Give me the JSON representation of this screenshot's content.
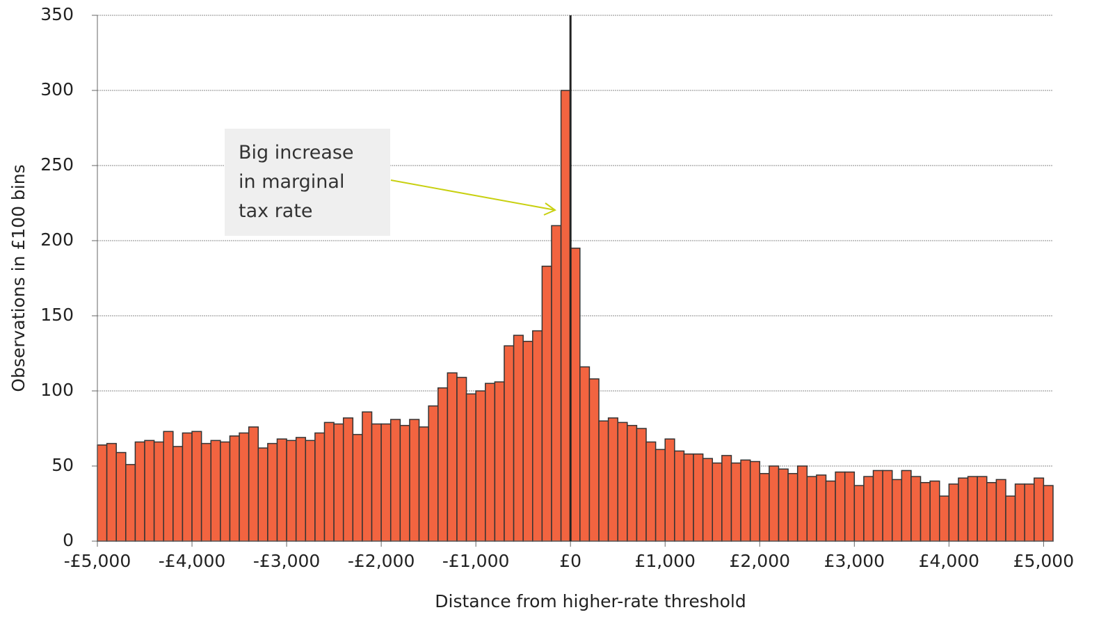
{
  "chart_data": {
    "type": "histogram",
    "xlabel": "Distance from higher-rate threshold",
    "ylabel": "Observations in £100 bins",
    "annotation": "Big increase in marginal tax rate",
    "color": "#f26440",
    "edge_color": "#333333",
    "reference_line_x": 0,
    "grid": true,
    "bins": [
      -5000,
      -4900,
      -4800,
      -4700,
      -4600,
      -4500,
      -4400,
      -4300,
      -4200,
      -4100,
      -4000,
      -3900,
      -3800,
      -3700,
      -3600,
      -3500,
      -3400,
      -3300,
      -3200,
      -3100,
      -3000,
      -2900,
      -2800,
      -2700,
      -2600,
      -2500,
      -2400,
      -2300,
      -2200,
      -2100,
      -2000,
      -1900,
      -1800,
      -1700,
      -1600,
      -1500,
      -1400,
      -1300,
      -1200,
      -1100,
      -1000,
      -900,
      -800,
      -700,
      -600,
      -500,
      -400,
      -300,
      -200,
      -100,
      0,
      100,
      200,
      300,
      400,
      500,
      600,
      700,
      800,
      900,
      1000,
      1100,
      1200,
      1300,
      1400,
      1500,
      1600,
      1700,
      1800,
      1900,
      2000,
      2100,
      2200,
      2300,
      2400,
      2500,
      2600,
      2700,
      2800,
      2900,
      3000,
      3100,
      3200,
      3300,
      3400,
      3500,
      3600,
      3700,
      3800,
      3900,
      4000,
      4100,
      4200,
      4300,
      4400,
      4500,
      4600,
      4700,
      4800,
      4900,
      5000,
      5100
    ],
    "values": [
      64,
      65,
      59,
      51,
      66,
      67,
      66,
      73,
      63,
      72,
      73,
      65,
      67,
      66,
      70,
      72,
      76,
      62,
      65,
      68,
      67,
      69,
      67,
      72,
      79,
      78,
      82,
      71,
      86,
      78,
      78,
      81,
      77,
      81,
      76,
      90,
      102,
      112,
      109,
      98,
      100,
      105,
      106,
      130,
      137,
      133,
      140,
      183,
      210,
      300,
      195,
      116,
      108,
      80,
      82,
      79,
      77,
      75,
      66,
      61,
      68,
      60,
      58,
      58,
      55,
      52,
      57,
      52,
      54,
      53,
      45,
      50,
      48,
      45,
      50,
      43,
      44,
      40,
      46,
      46,
      37,
      43,
      47,
      47,
      41,
      47,
      43,
      39,
      40,
      30,
      38,
      42,
      43,
      43,
      39,
      41,
      30,
      38,
      38,
      42,
      37
    ],
    "xlim": [
      -5000,
      5100
    ],
    "xticks": [
      {
        "value": -5000,
        "label": "-£5,000"
      },
      {
        "value": -4000,
        "label": "-£4,000"
      },
      {
        "value": -3000,
        "label": "-£3,000"
      },
      {
        "value": -2000,
        "label": "-£2,000"
      },
      {
        "value": -1000,
        "label": "-£1,000"
      },
      {
        "value": 0,
        "label": "£0"
      },
      {
        "value": 1000,
        "label": "£1,000"
      },
      {
        "value": 2000,
        "label": "£2,000"
      },
      {
        "value": 3000,
        "label": "£3,000"
      },
      {
        "value": 4000,
        "label": "£4,000"
      },
      {
        "value": 5000,
        "label": "£5,000"
      }
    ],
    "ylim": [
      0,
      350
    ],
    "yticks": [
      0,
      50,
      100,
      150,
      200,
      250,
      300,
      350
    ]
  }
}
